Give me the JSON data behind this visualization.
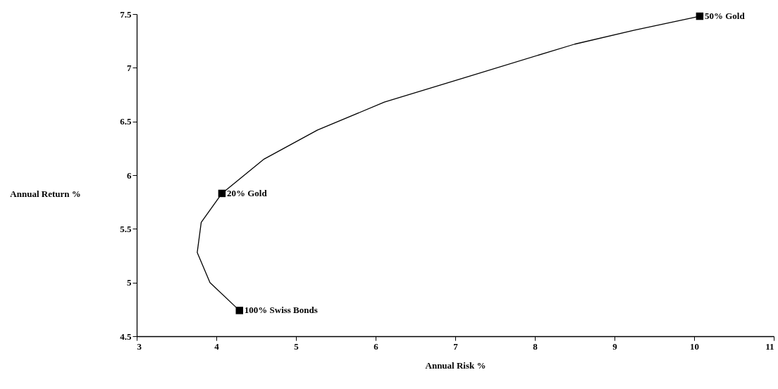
{
  "chart_data": {
    "type": "line",
    "xlabel": "Annual Risk %",
    "ylabel": "Annual Return %",
    "xlim": [
      3,
      11
    ],
    "ylim": [
      4.5,
      7.5
    ],
    "xticks": [
      3,
      4,
      5,
      6,
      7,
      8,
      9,
      10,
      11
    ],
    "yticks": [
      4.5,
      5,
      5.5,
      6,
      6.5,
      7,
      7.5
    ],
    "grid": false,
    "line_style": "solid",
    "series": [
      {
        "color": "#000000",
        "marker": "none",
        "x": [
          4.29,
          3.92,
          3.76,
          3.81,
          4.07,
          4.6,
          5.27,
          6.11,
          7.17,
          8.5,
          9.25,
          10.07
        ],
        "values": [
          4.74,
          5.0,
          5.28,
          5.56,
          5.83,
          6.15,
          6.42,
          6.68,
          6.92,
          7.22,
          7.35,
          7.48
        ]
      },
      {
        "type": "scatter",
        "color": "#000000",
        "marker": "square",
        "x": [
          4.29,
          4.07,
          10.07
        ],
        "values": [
          4.74,
          5.83,
          7.48
        ]
      }
    ],
    "annotations": [
      {
        "text": "100% Swiss Bonds",
        "x": 4.29,
        "y": 4.74
      },
      {
        "text": "20% Gold",
        "x": 4.07,
        "y": 5.83
      },
      {
        "text": "50% Gold",
        "x": 10.07,
        "y": 7.48
      }
    ]
  }
}
